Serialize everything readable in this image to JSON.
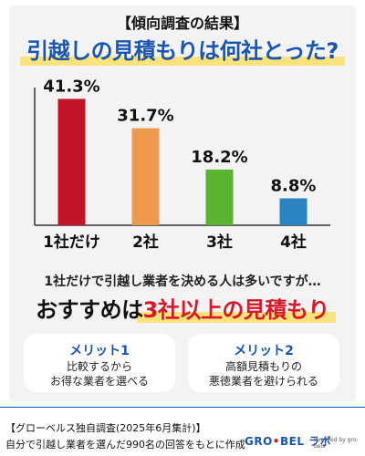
{
  "header": {
    "subtitle": "【傾向調査の結果】",
    "title": "引越しの見積もりは何社とった?"
  },
  "chart_data": {
    "type": "bar",
    "categories": [
      "1社だけ",
      "2社",
      "3社",
      "4社"
    ],
    "values": [
      41.3,
      31.7,
      18.2,
      8.8
    ],
    "value_labels": [
      "41.3%",
      "31.7%",
      "18.2%",
      "8.8%"
    ],
    "colors": [
      "#c4142a",
      "#ee9a4c",
      "#5bb431",
      "#2a84c2"
    ],
    "ylim": [
      0,
      45
    ],
    "grid": false
  },
  "message": {
    "line1": "1社だけで引越し業者を決める人は多いですが…",
    "rec_prefix": "おすすめは",
    "rec_highlight": "3社以上の見積もり"
  },
  "merits": [
    {
      "title": "メリット1",
      "line1": "比較するから",
      "line2": "お得な業者を選べる"
    },
    {
      "title": "メリット2",
      "line1": "高額見積もりの",
      "line2": "悪徳業者を避けられる"
    }
  ],
  "footer": {
    "line1": "【グローベルス独自調査(2025年6月集計)】",
    "line2": "自分で引越し業者を選んだ990名の回答をもとに作成",
    "logo_main": "GRO",
    "logo_dot": "•",
    "logo_rest": "BEL ラボ",
    "powered": "Powered by gro-bels"
  }
}
